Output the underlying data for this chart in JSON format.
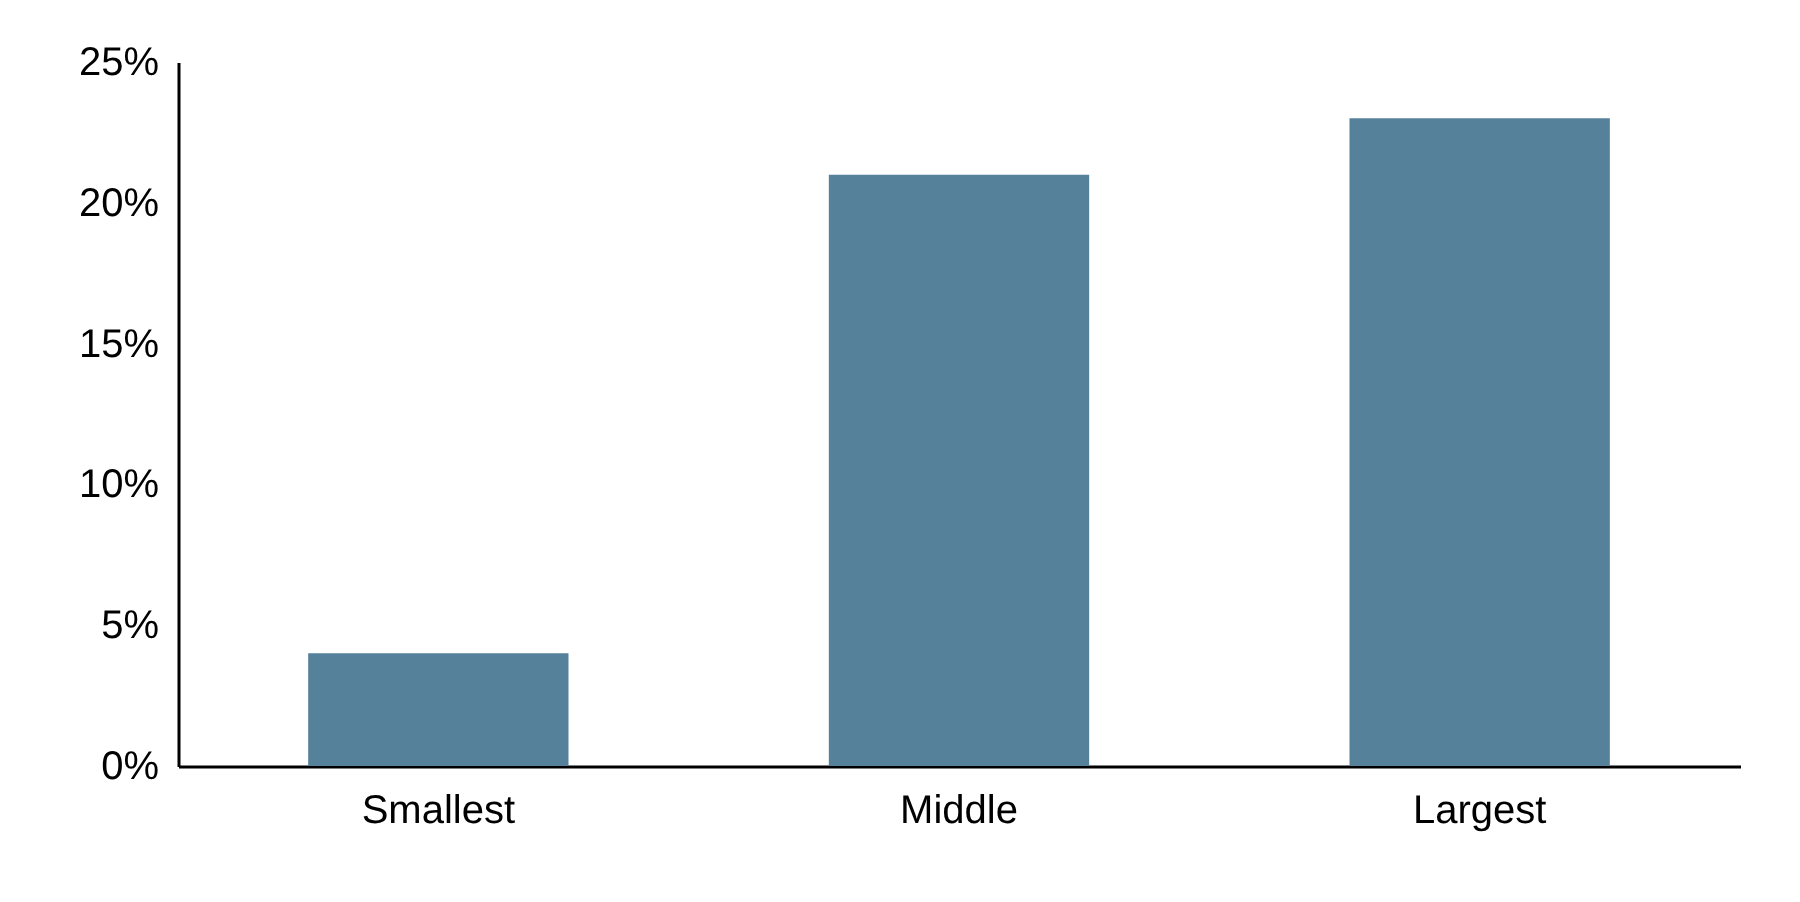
{
  "chart_data": {
    "type": "bar",
    "categories": [
      "Smallest",
      "Middle",
      "Largest"
    ],
    "values": [
      4,
      21,
      23
    ],
    "color": "#56819a",
    "ylim": [
      0,
      25
    ],
    "yticks": [
      {
        "value": 0,
        "label": "0%"
      },
      {
        "value": 5,
        "label": "5%"
      },
      {
        "value": 10,
        "label": "10%"
      },
      {
        "value": 15,
        "label": "15%"
      },
      {
        "value": 20,
        "label": "20%"
      },
      {
        "value": 25,
        "label": "25%"
      }
    ],
    "grid": false
  }
}
